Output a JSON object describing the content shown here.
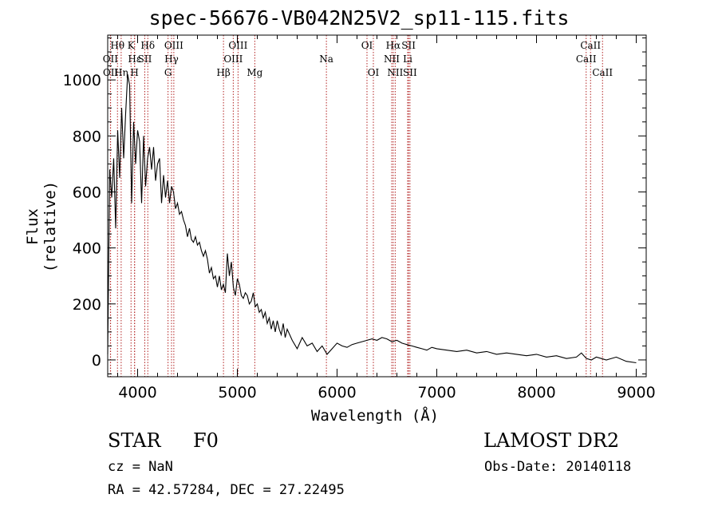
{
  "title": "spec-56676-VB042N25V2_sp11-115.fits",
  "footer": {
    "class": "STAR",
    "subclass": "F0",
    "survey": "LAMOST DR2",
    "cz": "cz = NaN",
    "obs_date": "Obs-Date: 20140118",
    "coords": "RA =  42.57284, DEC =  27.22495"
  },
  "chart_data": {
    "type": "line",
    "title": "spec-56676-VB042N25V2_sp11-115.fits",
    "xlabel": "Wavelength (Å)",
    "ylabel": "Flux (relative)",
    "xlim": [
      3700,
      9100
    ],
    "ylim": [
      -60,
      1160
    ],
    "xticks": [
      4000,
      5000,
      6000,
      7000,
      8000,
      9000
    ],
    "yticks": [
      0,
      200,
      400,
      600,
      800,
      1000
    ],
    "grid": false,
    "line_color": "#000000",
    "marker_color": "#b22222",
    "series": [
      {
        "x": [
          3700,
          3720,
          3740,
          3760,
          3780,
          3800,
          3820,
          3840,
          3860,
          3880,
          3900,
          3920,
          3940,
          3960,
          3980,
          4000,
          4020,
          4040,
          4060,
          4080,
          4100,
          4120,
          4140,
          4160,
          4180,
          4200,
          4220,
          4240,
          4260,
          4280,
          4300,
          4320,
          4340,
          4360,
          4380,
          4400,
          4420,
          4440,
          4460,
          4480,
          4500,
          4520,
          4540,
          4560,
          4580,
          4600,
          4620,
          4640,
          4660,
          4680,
          4700,
          4720,
          4740,
          4760,
          4780,
          4800,
          4820,
          4840,
          4860,
          4880,
          4900,
          4920,
          4940,
          4960,
          4980,
          5000,
          5020,
          5040,
          5060,
          5080,
          5100,
          5120,
          5140,
          5160,
          5180,
          5200,
          5220,
          5240,
          5260,
          5280,
          5300,
          5320,
          5340,
          5360,
          5380,
          5400,
          5420,
          5440,
          5460,
          5480,
          5500,
          5550,
          5600,
          5650,
          5700,
          5750,
          5800,
          5850,
          5900,
          5950,
          6000,
          6050,
          6100,
          6150,
          6200,
          6250,
          6300,
          6350,
          6400,
          6450,
          6500,
          6550,
          6600,
          6650,
          6700,
          6750,
          6800,
          6850,
          6900,
          6950,
          7000,
          7100,
          7200,
          7300,
          7400,
          7500,
          7600,
          7700,
          7800,
          7900,
          8000,
          8100,
          8200,
          8300,
          8400,
          8450,
          8500,
          8550,
          8600,
          8650,
          8700,
          8800,
          8900,
          9000
        ],
        "y": [
          20,
          680,
          580,
          720,
          470,
          820,
          650,
          900,
          720,
          880,
          1020,
          980,
          560,
          850,
          700,
          820,
          780,
          560,
          800,
          620,
          720,
          760,
          680,
          760,
          640,
          700,
          720,
          560,
          660,
          580,
          640,
          560,
          620,
          600,
          540,
          560,
          520,
          530,
          500,
          480,
          440,
          470,
          430,
          420,
          440,
          410,
          420,
          390,
          370,
          390,
          360,
          310,
          330,
          290,
          300,
          260,
          300,
          250,
          270,
          240,
          380,
          300,
          350,
          260,
          230,
          290,
          270,
          230,
          220,
          240,
          230,
          200,
          210,
          240,
          190,
          200,
          170,
          180,
          150,
          170,
          130,
          150,
          110,
          140,
          100,
          140,
          110,
          90,
          130,
          80,
          110,
          70,
          40,
          80,
          50,
          60,
          30,
          50,
          20,
          40,
          60,
          50,
          45,
          55,
          60,
          65,
          70,
          75,
          70,
          80,
          75,
          65,
          70,
          60,
          55,
          50,
          45,
          40,
          35,
          45,
          40,
          35,
          30,
          35,
          25,
          30,
          20,
          25,
          20,
          15,
          20,
          10,
          15,
          5,
          10,
          25,
          5,
          0,
          10,
          5,
          0,
          10,
          -5,
          -10
        ]
      }
    ],
    "lines": [
      {
        "label": "Hθ",
        "wave": 3798,
        "row": 1
      },
      {
        "label": "K",
        "wave": 3934,
        "row": 1
      },
      {
        "label": "Hδ",
        "wave": 4102,
        "row": 1
      },
      {
        "label": "OIII",
        "wave": 4363,
        "row": 1
      },
      {
        "label": "OIII",
        "wave": 5007,
        "row": 1
      },
      {
        "label": "OI",
        "wave": 6300,
        "row": 1
      },
      {
        "label": "Hα",
        "wave": 6563,
        "row": 1
      },
      {
        "label": "SII",
        "wave": 6717,
        "row": 1
      },
      {
        "label": "CaII",
        "wave": 8542,
        "row": 1
      },
      {
        "label": "OII",
        "wave": 3727,
        "row": 2
      },
      {
        "label": "Hε",
        "wave": 3970,
        "row": 2
      },
      {
        "label": "SII",
        "wave": 4072,
        "row": 2
      },
      {
        "label": "Hγ",
        "wave": 4340,
        "row": 2
      },
      {
        "label": "OIII",
        "wave": 4959,
        "row": 2
      },
      {
        "label": "Na",
        "wave": 5893,
        "row": 2
      },
      {
        "label": "NII",
        "wave": 6548,
        "row": 2
      },
      {
        "label": "Li",
        "wave": 6708,
        "row": 2
      },
      {
        "label": "CaII",
        "wave": 8498,
        "row": 2
      },
      {
        "label": "OII",
        "wave": 3729,
        "row": 3
      },
      {
        "label": "Hη",
        "wave": 3835,
        "row": 3
      },
      {
        "label": "H",
        "wave": 3969,
        "row": 3
      },
      {
        "label": "G",
        "wave": 4305,
        "row": 3
      },
      {
        "label": "Hβ",
        "wave": 4861,
        "row": 3
      },
      {
        "label": "Mg",
        "wave": 5175,
        "row": 3
      },
      {
        "label": "OI",
        "wave": 6364,
        "row": 3
      },
      {
        "label": "NII",
        "wave": 6583,
        "row": 3
      },
      {
        "label": "SII",
        "wave": 6731,
        "row": 3
      },
      {
        "label": "CaII",
        "wave": 8662,
        "row": 3
      }
    ]
  }
}
